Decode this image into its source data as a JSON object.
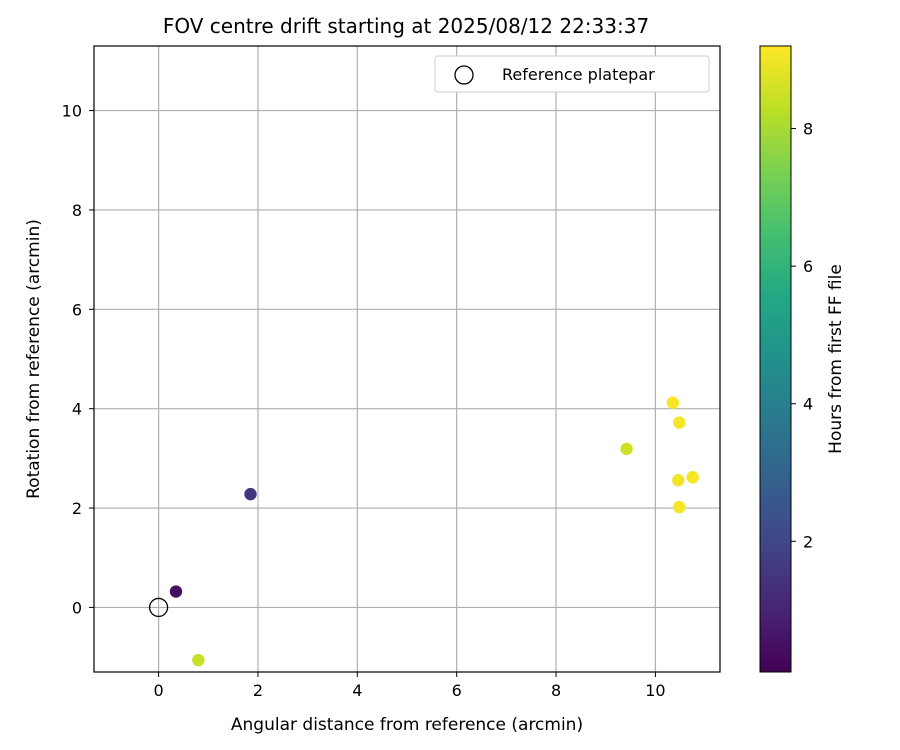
{
  "chart_data": {
    "type": "scatter",
    "title": "FOV centre drift starting at 2025/08/12 22:33:37",
    "xlabel": "Angular distance from reference (arcmin)",
    "ylabel": "Rotation from reference (arcmin)",
    "xlim": [
      -1.3,
      11.3
    ],
    "ylim": [
      -1.3,
      11.3
    ],
    "xticks": [
      0,
      2,
      4,
      6,
      8,
      10
    ],
    "yticks": [
      0,
      2,
      4,
      6,
      8,
      10
    ],
    "grid": true,
    "legend": {
      "placement": "top-right",
      "entries": [
        "Reference platepar"
      ]
    },
    "reference_point": {
      "x": 0,
      "y": 0,
      "label": "Reference platepar"
    },
    "colorbar": {
      "label": "Hours from first FF file",
      "colormap": "viridis",
      "min": 0.1,
      "max": 9.2,
      "ticks": [
        2,
        4,
        6,
        8
      ]
    },
    "points": [
      {
        "x": 0.35,
        "y": 0.32,
        "hours": 0.4
      },
      {
        "x": 1.85,
        "y": 2.28,
        "hours": 1.5
      },
      {
        "x": 0.8,
        "y": -1.06,
        "hours": 8.4
      },
      {
        "x": 9.42,
        "y": 3.19,
        "hours": 8.5
      },
      {
        "x": 10.35,
        "y": 4.12,
        "hours": 9.1
      },
      {
        "x": 10.48,
        "y": 3.72,
        "hours": 9.1
      },
      {
        "x": 10.46,
        "y": 2.56,
        "hours": 9.0
      },
      {
        "x": 10.75,
        "y": 2.62,
        "hours": 9.1
      },
      {
        "x": 10.48,
        "y": 2.02,
        "hours": 9.1
      }
    ]
  }
}
